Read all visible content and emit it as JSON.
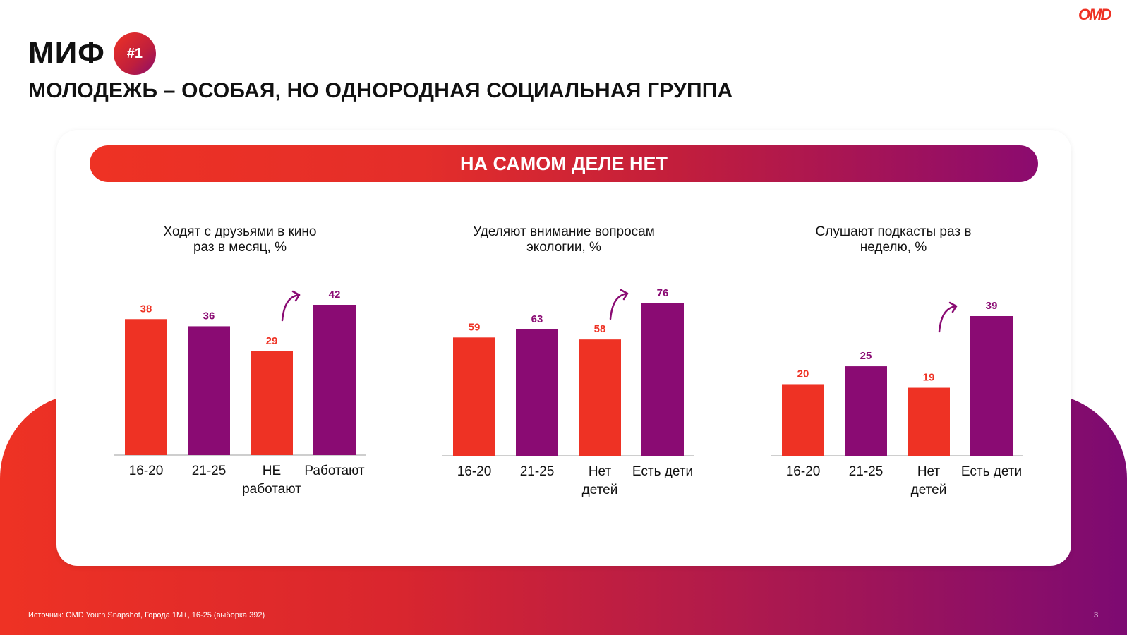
{
  "header": {
    "myth_label": "МИФ",
    "myth_number": "#1",
    "subtitle": "МОЛОДЕЖЬ – ОСОБАЯ, НО ОДНОРОДНАЯ СОЦИАЛЬНАЯ ГРУППА",
    "logo_text": "OMD"
  },
  "banner": {
    "text": "НА САМОМ ДЕЛЕ НЕТ"
  },
  "colors": {
    "red": "#ee3224",
    "purple": "#8a0b73",
    "axis": "#bdbdbd"
  },
  "chart_data": [
    {
      "type": "bar",
      "title_lines": [
        "Ходят с друзьями в кино",
        "раз в месяц, %"
      ],
      "categories": [
        [
          "16-20"
        ],
        [
          "21-25"
        ],
        [
          "НЕ",
          "работают"
        ],
        [
          "Работают"
        ]
      ],
      "values": [
        38,
        36,
        29,
        42
      ],
      "bar_colors": [
        "red",
        "purple",
        "red",
        "purple"
      ],
      "ylim": [
        0,
        42
      ],
      "arrow_before_index": 3
    },
    {
      "type": "bar",
      "title_lines": [
        "Уделяют внимание вопросам",
        "экологии, %"
      ],
      "categories": [
        [
          "16-20"
        ],
        [
          "21-25"
        ],
        [
          "Нет",
          "детей"
        ],
        [
          "Есть дети"
        ]
      ],
      "values": [
        59,
        63,
        58,
        76
      ],
      "bar_colors": [
        "red",
        "purple",
        "red",
        "purple"
      ],
      "ylim": [
        0,
        76
      ],
      "arrow_before_index": 3
    },
    {
      "type": "bar",
      "title_lines": [
        "Слушают подкасты раз в",
        "неделю, %"
      ],
      "categories": [
        [
          "16-20"
        ],
        [
          "21-25"
        ],
        [
          "Нет",
          "детей"
        ],
        [
          "Есть дети"
        ]
      ],
      "values": [
        20,
        25,
        19,
        39
      ],
      "bar_colors": [
        "red",
        "purple",
        "red",
        "purple"
      ],
      "ylim": [
        0,
        39
      ],
      "arrow_before_index": 3
    }
  ],
  "footer": {
    "source": "Источник: OMD Youth Snapshot, Города 1М+, 16-25 (выборка 392)",
    "page_number": "3"
  }
}
